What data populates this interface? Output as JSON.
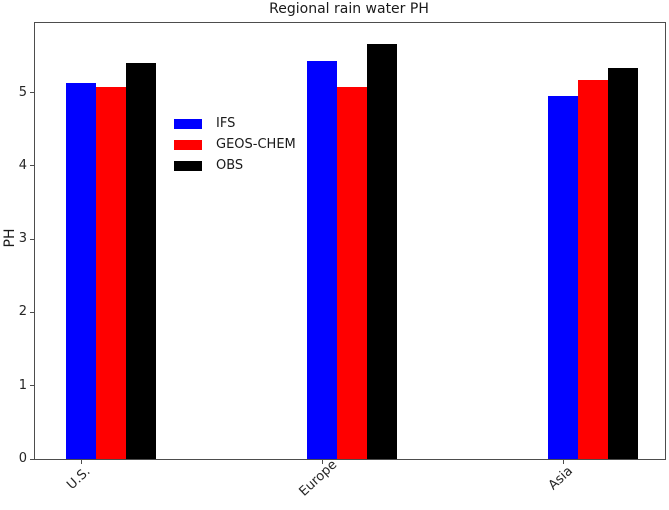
{
  "figure": {
    "title": "Regional rain water PH",
    "ylabel": "PH"
  },
  "legend": {
    "entries": [
      {
        "label": "IFS",
        "color": "#0000ff"
      },
      {
        "label": "GEOS-CHEM",
        "color": "#ff0000"
      },
      {
        "label": "OBS",
        "color": "#000000"
      }
    ]
  },
  "chart_data": {
    "type": "bar",
    "title": "Regional rain water PH",
    "xlabel": "",
    "ylabel": "PH",
    "categories": [
      "U.S.",
      "Europe",
      "Asia"
    ],
    "series": [
      {
        "name": "IFS",
        "color": "#0000ff",
        "values": [
          5.13,
          5.43,
          4.95
        ]
      },
      {
        "name": "GEOS-CHEM",
        "color": "#ff0000",
        "values": [
          5.07,
          5.07,
          5.17
        ]
      },
      {
        "name": "OBS",
        "color": "#000000",
        "values": [
          5.4,
          5.67,
          5.33
        ]
      }
    ],
    "ylim": [
      0,
      5.95
    ],
    "yticks": [
      0,
      1,
      2,
      3,
      4,
      5
    ],
    "grid": false,
    "legend_position": "upper left inside axes",
    "xtick_rotation_deg": 43,
    "bar_alignment": "tick at center of first series bar"
  }
}
